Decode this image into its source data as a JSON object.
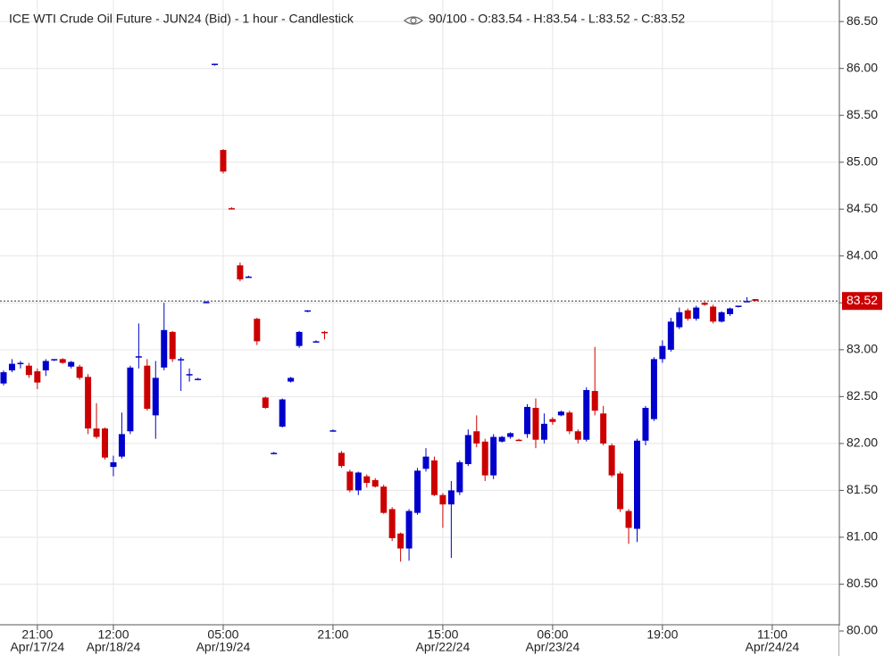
{
  "chart_data": {
    "type": "candlestick",
    "title": "ICE WTI Crude Oil Future - JUN24 (Bid) - 1 hour - Candlestick",
    "subtitle": "90/100 - O:83.54 - H:83.54 - L:83.52 - C:83.52",
    "categories": [
      null,
      null,
      null,
      null,
      "21:00",
      null,
      null,
      null,
      null,
      null,
      null,
      null,
      null,
      "12:00",
      null,
      null,
      null,
      null,
      null,
      null,
      null,
      null,
      null,
      null,
      null,
      null,
      "05:00",
      null,
      null,
      null,
      null,
      null,
      null,
      null,
      null,
      null,
      null,
      null,
      null,
      "21:00",
      null,
      null,
      null,
      null,
      null,
      null,
      null,
      null,
      null,
      null,
      null,
      null,
      "15:00",
      null,
      null,
      null,
      null,
      null,
      null,
      null,
      null,
      null,
      null,
      null,
      null,
      "06:00",
      null,
      null,
      null,
      null,
      null,
      null,
      null,
      null,
      null,
      null,
      null,
      null,
      "19:00",
      null,
      null,
      null,
      null,
      null,
      null,
      null,
      null,
      null,
      null,
      null,
      null,
      "11:00"
    ],
    "date_labels": [
      null,
      null,
      null,
      null,
      "Apr/17/24",
      null,
      null,
      null,
      null,
      null,
      null,
      null,
      null,
      "Apr/18/24",
      null,
      null,
      null,
      null,
      null,
      null,
      null,
      null,
      null,
      null,
      null,
      null,
      "Apr/19/24",
      null,
      null,
      null,
      null,
      null,
      null,
      null,
      null,
      null,
      null,
      null,
      null,
      null,
      null,
      null,
      null,
      null,
      null,
      null,
      null,
      null,
      null,
      null,
      null,
      null,
      "Apr/22/24",
      null,
      null,
      null,
      null,
      null,
      null,
      null,
      null,
      null,
      null,
      null,
      null,
      "Apr/23/24",
      null,
      null,
      null,
      null,
      null,
      null,
      null,
      null,
      null,
      null,
      null,
      null,
      null,
      null,
      null,
      null,
      null,
      null,
      null,
      null,
      null,
      null,
      null,
      null,
      null,
      "Apr/24/24"
    ],
    "open": [
      82.64,
      82.78,
      82.85,
      82.83,
      82.77,
      82.78,
      82.89,
      82.9,
      82.82,
      82.82,
      82.71,
      82.16,
      82.16,
      81.75,
      81.86,
      82.13,
      82.92,
      82.83,
      82.3,
      82.81,
      83.19,
      82.9,
      82.73,
      82.69,
      83.51,
      86.04,
      85.13,
      84.51,
      83.9,
      83.78,
      83.33,
      82.49,
      81.9,
      82.18,
      82.66,
      83.04,
      83.41,
      83.09,
      83.19,
      82.14,
      81.9,
      81.7,
      81.5,
      81.65,
      81.61,
      81.54,
      81.3,
      81.04,
      80.88,
      81.26,
      81.73,
      81.82,
      81.45,
      81.35,
      81.48,
      81.78,
      82.13,
      82.02,
      81.66,
      82.02,
      82.07,
      82.04,
      82.1,
      82.38,
      82.04,
      82.26,
      82.3,
      82.33,
      82.13,
      82.04,
      82.56,
      82.32,
      81.98,
      81.68,
      81.28,
      81.09,
      82.03,
      82.26,
      82.9,
      83.0,
      83.24,
      83.42,
      83.33,
      83.5,
      83.46,
      83.3,
      83.38,
      83.46,
      83.52,
      83.54,
      null,
      null
    ],
    "high": [
      82.78,
      82.9,
      82.88,
      82.86,
      82.8,
      82.9,
      82.9,
      82.91,
      82.88,
      82.84,
      82.74,
      82.43,
      82.17,
      81.87,
      82.33,
      82.83,
      83.28,
      82.9,
      82.88,
      83.5,
      83.2,
      82.92,
      82.8,
      82.7,
      83.52,
      86.05,
      85.14,
      84.52,
      83.93,
      83.79,
      83.34,
      82.5,
      81.91,
      82.48,
      82.71,
      83.2,
      83.42,
      83.1,
      83.2,
      82.15,
      81.92,
      81.72,
      81.7,
      81.67,
      81.63,
      81.56,
      81.32,
      81.05,
      81.3,
      81.74,
      81.95,
      81.86,
      81.47,
      81.6,
      81.82,
      82.15,
      82.3,
      82.05,
      82.1,
      82.08,
      82.12,
      82.05,
      82.42,
      82.48,
      82.32,
      82.28,
      82.35,
      82.35,
      82.15,
      82.6,
      83.03,
      82.4,
      82.0,
      81.7,
      81.3,
      82.05,
      82.4,
      82.92,
      83.1,
      83.34,
      83.45,
      83.44,
      83.47,
      83.51,
      83.48,
      83.41,
      83.45,
      83.47,
      83.56,
      83.54,
      null,
      null
    ],
    "low": [
      82.62,
      82.76,
      82.8,
      82.7,
      82.58,
      82.72,
      82.88,
      82.85,
      82.8,
      82.68,
      82.1,
      82.05,
      81.83,
      81.65,
      81.84,
      82.1,
      82.8,
      82.35,
      82.05,
      82.78,
      82.87,
      82.56,
      82.66,
      82.68,
      83.5,
      86.03,
      84.88,
      84.5,
      83.73,
      83.77,
      83.05,
      82.37,
      81.89,
      82.17,
      82.65,
      83.02,
      83.4,
      83.08,
      83.11,
      82.13,
      81.74,
      81.48,
      81.45,
      81.53,
      81.53,
      81.25,
      80.96,
      80.74,
      80.75,
      81.24,
      81.7,
      81.44,
      81.1,
      80.78,
      81.45,
      81.76,
      81.96,
      81.6,
      81.62,
      82.01,
      82.05,
      82.03,
      82.06,
      81.95,
      82.0,
      82.2,
      82.29,
      82.1,
      82.0,
      82.02,
      82.3,
      81.98,
      81.64,
      81.27,
      80.93,
      80.95,
      81.98,
      82.24,
      82.86,
      82.98,
      83.22,
      83.31,
      83.31,
      83.47,
      83.28,
      83.29,
      83.36,
      83.45,
      83.51,
      83.52,
      null,
      null
    ],
    "close": [
      82.76,
      82.85,
      82.86,
      82.73,
      82.65,
      82.88,
      82.9,
      82.86,
      82.87,
      82.7,
      82.16,
      82.07,
      81.85,
      81.8,
      82.1,
      82.81,
      82.93,
      82.37,
      82.7,
      83.21,
      82.9,
      82.9,
      82.74,
      82.69,
      83.51,
      86.05,
      84.9,
      84.5,
      83.75,
      83.78,
      83.09,
      82.38,
      81.9,
      82.47,
      82.7,
      83.19,
      83.42,
      83.09,
      83.18,
      82.14,
      81.76,
      81.5,
      81.69,
      81.58,
      81.54,
      81.26,
      80.99,
      80.88,
      81.28,
      81.71,
      81.86,
      81.45,
      81.35,
      81.5,
      81.8,
      82.09,
      82.0,
      81.66,
      82.07,
      82.07,
      82.11,
      82.03,
      82.39,
      82.04,
      82.21,
      82.23,
      82.34,
      82.13,
      82.04,
      82.57,
      82.35,
      82.0,
      81.66,
      81.3,
      81.1,
      82.03,
      82.38,
      82.9,
      83.04,
      83.3,
      83.4,
      83.33,
      83.45,
      83.48,
      83.3,
      83.4,
      83.44,
      83.47,
      83.52,
      83.52,
      null,
      null
    ],
    "up_color": "#0000cc",
    "down_color": "#cc0000",
    "last_price": 83.52,
    "ylim": [
      80,
      86.73
    ],
    "yticks": [
      {
        "value": 80,
        "label": "80.00"
      },
      {
        "value": 80.5,
        "label": "80.50"
      },
      {
        "value": 81,
        "label": "81.00"
      },
      {
        "value": 81.5,
        "label": "81.50"
      },
      {
        "value": 82,
        "label": "82.00"
      },
      {
        "value": 82.5,
        "label": "82.50"
      },
      {
        "value": 83,
        "label": "83.00"
      },
      {
        "value": 83.5,
        "label": "83.50"
      },
      {
        "value": 84,
        "label": "84.00"
      },
      {
        "value": 84.5,
        "label": "84.50"
      },
      {
        "value": 85,
        "label": "85.00"
      },
      {
        "value": 85.5,
        "label": "85.50"
      },
      {
        "value": 86,
        "label": "86.00"
      },
      {
        "value": 86.5,
        "label": "86.50"
      }
    ],
    "grid": true
  }
}
